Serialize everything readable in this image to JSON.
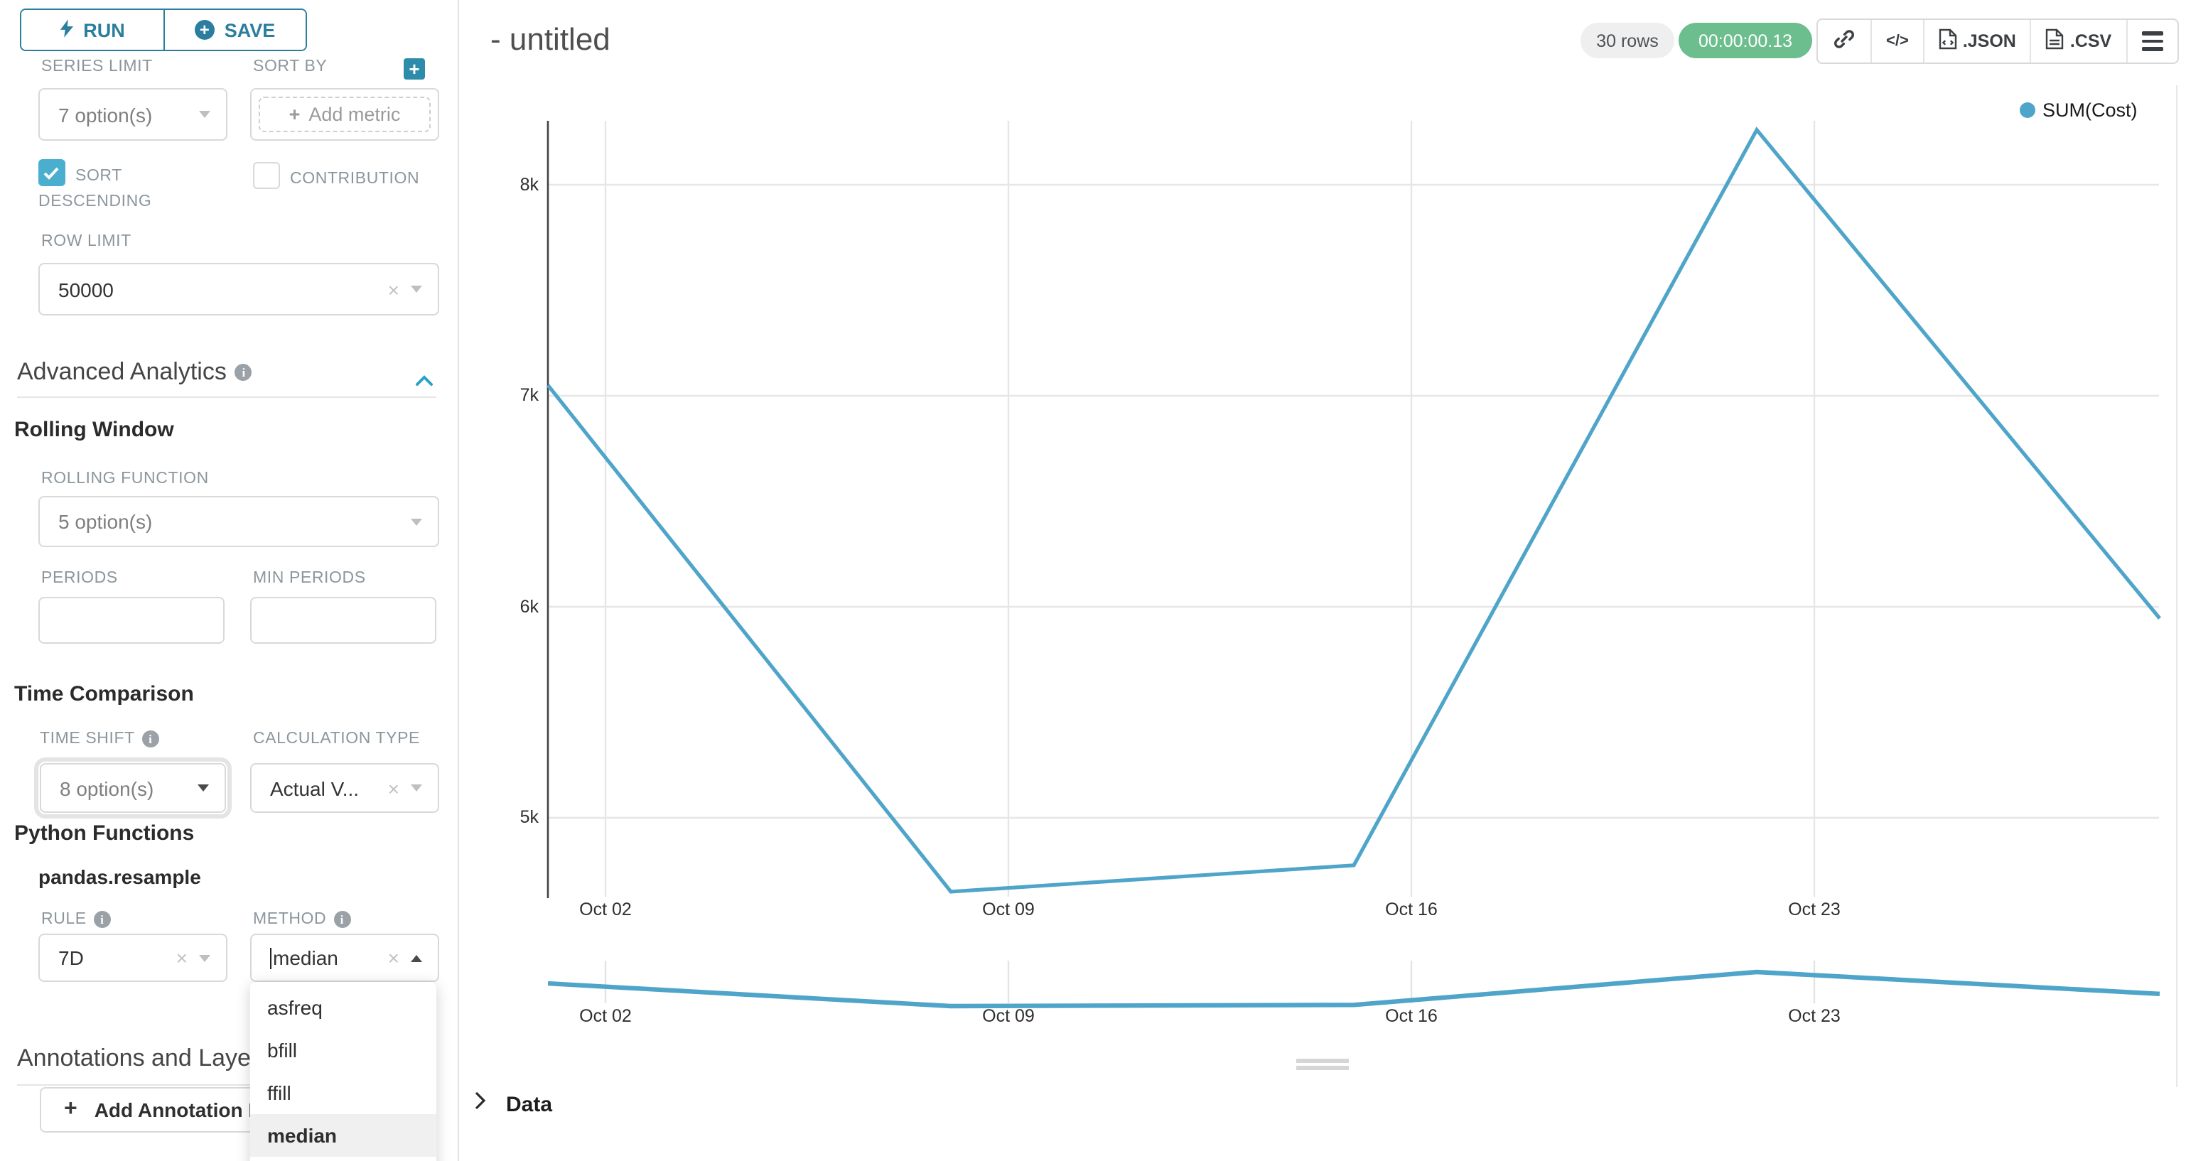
{
  "colors": {
    "accent_teal": "#2b7e9d",
    "checkbox_teal": "#4aaecf",
    "plus_teal": "#2e8cab",
    "collapse_chevron_blue": "#29a3c5",
    "success_green": "#6cbe8e",
    "line_blue": "#4fa5c9"
  },
  "sidebar": {
    "run": {
      "label": "RUN"
    },
    "save": {
      "label": "SAVE"
    },
    "series_limit": {
      "label": "SERIES LIMIT",
      "value": "7 option(s)"
    },
    "sort_by": {
      "label": "SORT BY",
      "placeholder": "Add metric"
    },
    "sort_descending": {
      "label": "SORT DESCENDING",
      "checked": true
    },
    "contribution": {
      "label": "CONTRIBUTION",
      "checked": false
    },
    "row_limit": {
      "label": "ROW LIMIT",
      "value": "50000"
    },
    "advanced_analytics": {
      "title": "Advanced Analytics"
    },
    "rolling_window": {
      "title": "Rolling Window"
    },
    "rolling_function": {
      "label": "ROLLING FUNCTION",
      "value": "5 option(s)"
    },
    "periods": {
      "label": "PERIODS",
      "value": ""
    },
    "min_periods": {
      "label": "MIN PERIODS",
      "value": ""
    },
    "time_comparison": {
      "title": "Time Comparison"
    },
    "time_shift": {
      "label": "TIME SHIFT",
      "value": "8 option(s)"
    },
    "calculation_type": {
      "label": "CALCULATION TYPE",
      "value": "Actual V..."
    },
    "python_functions": {
      "title": "Python Functions",
      "subtitle": "pandas.resample"
    },
    "rule": {
      "label": "RULE",
      "value": "7D"
    },
    "method": {
      "label": "METHOD",
      "value": "median",
      "selected": "median",
      "options": [
        "asfreq",
        "bfill",
        "ffill",
        "median"
      ]
    },
    "annotations": {
      "title": "Annotations and Layers",
      "add_label": "Add Annotation Layer"
    }
  },
  "header": {
    "title": "- untitled",
    "rows_badge": "30 rows",
    "timer_badge": "00:00:00.13",
    "export_json_label": ".JSON",
    "export_csv_label": ".CSV"
  },
  "chart_data": {
    "type": "line",
    "title": "",
    "xlabel": "",
    "ylabel": "",
    "x": [
      "Oct 01",
      "Oct 08",
      "Oct 15",
      "Oct 22",
      "Oct 29"
    ],
    "x_day_index": [
      1,
      8,
      15,
      22,
      29
    ],
    "series": [
      {
        "name": "SUM(Cost)",
        "color": "#4fa5c9",
        "values": [
          7050,
          4650,
          4775,
          8260,
          5945
        ]
      }
    ],
    "x_tick_labels": [
      "Oct 02",
      "Oct 09",
      "Oct 16",
      "Oct 23"
    ],
    "x_tick_days": [
      2,
      9,
      16,
      23
    ],
    "y_tick_labels": [
      "8k",
      "7k",
      "6k",
      "5k"
    ],
    "y_tick_values": [
      8000,
      7000,
      6000,
      5000
    ],
    "ylim": [
      4640,
      8300
    ],
    "grid": true,
    "legend_position": "top-right",
    "has_mini_preview_chart": true
  },
  "data_panel": {
    "label": "Data"
  }
}
